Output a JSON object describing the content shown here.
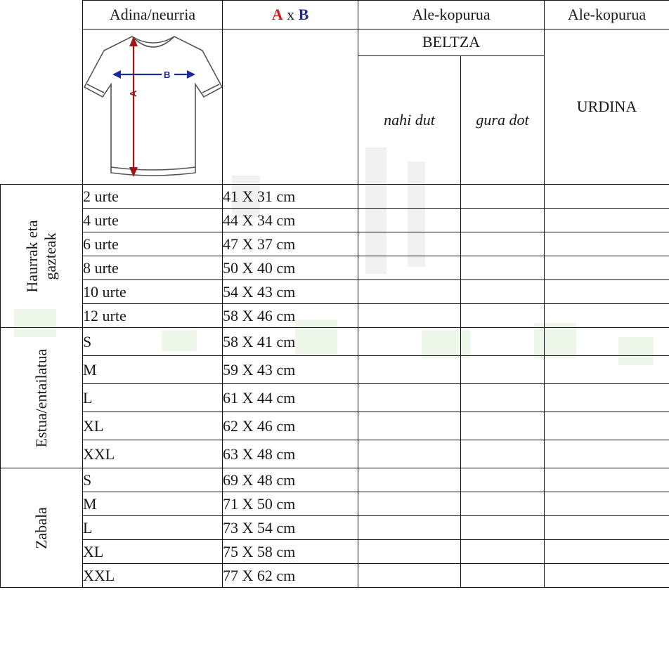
{
  "header": {
    "col_size": "Adina/neurria",
    "col_dims_a": "A",
    "col_dims_x": " x ",
    "col_dims_b": "B",
    "col_qty1": "Ale-kopurua",
    "col_qty2": "Ale-kopurua",
    "color1": "BELTZA",
    "color2": "URDINA",
    "sub1": "nahi dut",
    "sub2": "gura dot"
  },
  "diagram": {
    "label_a": "A",
    "label_b": "B",
    "color_a": "#a31515",
    "color_b": "#1d2a9a"
  },
  "groups": [
    {
      "label_line1": "Haurrak eta",
      "label_line2": "gazteak",
      "rows": [
        {
          "size": "2 urte",
          "dims": "41 X 31 cm"
        },
        {
          "size": "4 urte",
          "dims": "44 X 34 cm"
        },
        {
          "size": "6 urte",
          "dims": "47 X 37 cm"
        },
        {
          "size": "8 urte",
          "dims": "50 X 40 cm"
        },
        {
          "size": "10 urte",
          "dims": "54 X 43 cm"
        },
        {
          "size": "12 urte",
          "dims": "58 X 46 cm"
        }
      ]
    },
    {
      "label_line1": "Estua/entailatua",
      "label_line2": "",
      "rows": [
        {
          "size": "S",
          "dims": "58 X 41 cm"
        },
        {
          "size": "M",
          "dims": "59 X 43 cm"
        },
        {
          "size": "L",
          "dims": "61 X 44 cm"
        },
        {
          "size": "XL",
          "dims": "62 X 46 cm"
        },
        {
          "size": "XXL",
          "dims": "63 X 48 cm"
        }
      ]
    },
    {
      "label_line1": "Zabala",
      "label_line2": "",
      "rows": [
        {
          "size": "S",
          "dims": "69 X 48 cm"
        },
        {
          "size": "M",
          "dims": "71 X 50 cm"
        },
        {
          "size": "L",
          "dims": "73 X 54 cm"
        },
        {
          "size": "XL",
          "dims": "75 X 58 cm"
        },
        {
          "size": "XXL",
          "dims": "77 X 62 cm"
        }
      ]
    }
  ]
}
